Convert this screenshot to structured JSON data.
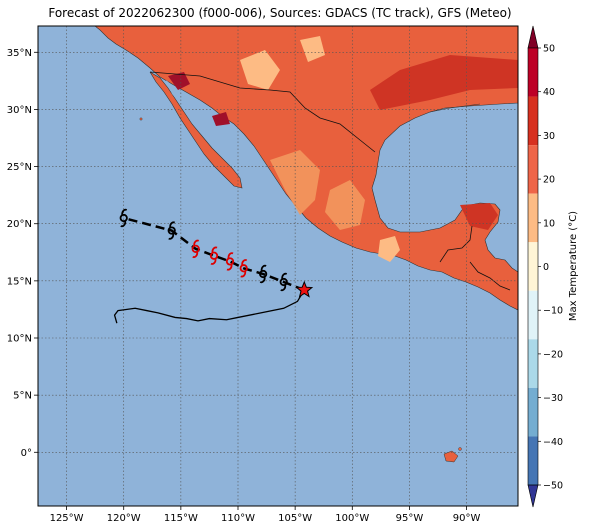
{
  "title": "Forecast of 2022062300 (f000-006), Sources: GDACS (TC track), GFS (Meteo)",
  "map": {
    "lon_range": [
      -127.5,
      -85.5
    ],
    "lat_range": [
      -4.7,
      37.3
    ],
    "lon_ticks": [
      {
        "value": -125,
        "label": "125°W"
      },
      {
        "value": -120,
        "label": "120°W"
      },
      {
        "value": -115,
        "label": "115°W"
      },
      {
        "value": -110,
        "label": "110°W"
      },
      {
        "value": -105,
        "label": "105°W"
      },
      {
        "value": -100,
        "label": "100°W"
      },
      {
        "value": -95,
        "label": "95°W"
      },
      {
        "value": -90,
        "label": "90°W"
      }
    ],
    "lat_ticks": [
      {
        "value": 0,
        "label": "0°"
      },
      {
        "value": 5,
        "label": "5°N"
      },
      {
        "value": 10,
        "label": "10°N"
      },
      {
        "value": 15,
        "label": "15°N"
      },
      {
        "value": 20,
        "label": "20°N"
      },
      {
        "value": 25,
        "label": "25°N"
      },
      {
        "value": 30,
        "label": "30°N"
      },
      {
        "value": 35,
        "label": "35°N"
      }
    ],
    "ocean_color": "#8fb3d9"
  },
  "colorbar": {
    "label": "Max Temperature (°C)",
    "ticks": [
      "50",
      "40",
      "30",
      "20",
      "10",
      "0",
      "−10",
      "−20",
      "−30",
      "−40",
      "−50"
    ],
    "colors_top_to_bottom": [
      "#800026",
      "#bd0026",
      "#d7301f",
      "#ef6548",
      "#fdbb84",
      "#fff5d6",
      "#e0f3f8",
      "#abd9e9",
      "#74add1",
      "#4575b4",
      "#313695"
    ]
  },
  "track": {
    "storm_icon": "hurricane-symbol-icon",
    "current_position_icon": "star-icon",
    "current_position": [
      -104.2,
      14.2
    ],
    "past_track": [
      [
        -104.2,
        14.2
      ],
      [
        -104.8,
        13.2
      ],
      [
        -106,
        12.6
      ],
      [
        -108,
        12.2
      ],
      [
        -110,
        11.8
      ],
      [
        -111,
        11.6
      ],
      [
        -112.5,
        11.7
      ],
      [
        -113.5,
        11.5
      ],
      [
        -114.5,
        11.7
      ],
      [
        -115.5,
        11.8
      ],
      [
        -117,
        12.2
      ],
      [
        -118,
        12.4
      ],
      [
        -119,
        12.6
      ],
      [
        -120.5,
        12.4
      ],
      [
        -120.8,
        12
      ],
      [
        -120.6,
        11.3
      ]
    ],
    "forecast_points": [
      {
        "lon": -106,
        "lat": 14.9,
        "color": "#000000"
      },
      {
        "lon": -107.8,
        "lat": 15.6,
        "color": "#000000"
      },
      {
        "lon": -109.5,
        "lat": 16.1,
        "color": "#dd0000"
      },
      {
        "lon": -110.7,
        "lat": 16.7,
        "color": "#dd0000"
      },
      {
        "lon": -112.1,
        "lat": 17.2,
        "color": "#dd0000"
      },
      {
        "lon": -113.7,
        "lat": 17.8,
        "color": "#dd0000"
      },
      {
        "lon": -115.8,
        "lat": 19.4,
        "color": "#000000"
      },
      {
        "lon": -120,
        "lat": 20.5,
        "color": "#000000"
      }
    ]
  }
}
